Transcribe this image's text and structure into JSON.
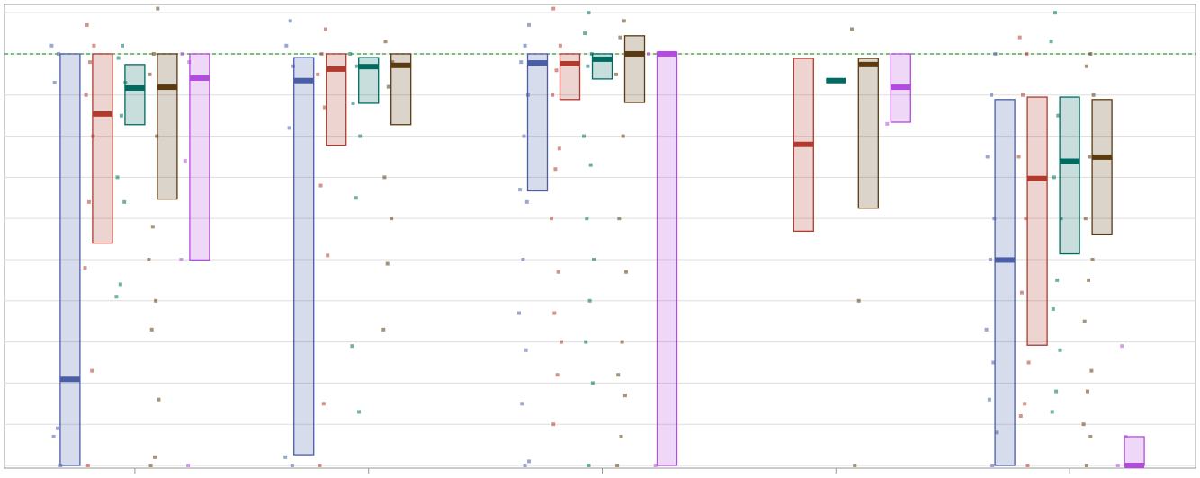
{
  "chart_data": {
    "type": "floating_box",
    "categories": [
      null,
      null,
      null,
      null,
      null
    ],
    "ylim": [
      0,
      1.12
    ],
    "yticks": [
      0,
      0.1,
      0.2,
      0.3,
      0.4,
      0.5,
      0.6,
      0.7,
      0.8,
      0.9,
      1.0,
      1.1
    ],
    "grid": true,
    "reference_line": 1.0,
    "reference_color": "#2a9a2a",
    "series": [
      {
        "color": "#4a5ea8",
        "low": [
          0,
          0.026,
          0.667,
          null,
          0
        ],
        "high": [
          1.0,
          0.991,
          1.0,
          null,
          0.889
        ],
        "median": [
          0.209,
          0.935,
          0.978,
          null,
          0.499
        ],
        "points": [
          [
            1.02,
            1.0,
            0.93,
            0.21,
            0.09,
            0.07,
            0
          ],
          [
            1.08,
            1.02,
            0.97,
            0.82,
            0.02,
            0
          ],
          [
            1.07,
            1.02,
            0.98,
            0.9,
            0.8,
            0.67,
            0.64,
            0.5,
            0.37,
            0.28,
            0.15,
            0.01,
            0
          ],
          [],
          [
            1.0,
            0.9,
            0.75,
            0.6,
            0.5,
            0.33,
            0.25,
            0.16,
            0.08,
            0
          ]
        ]
      },
      {
        "color": "#b03a2e",
        "low": [
          0.54,
          0.778,
          0.889,
          0.569,
          0.292
        ],
        "high": [
          1.0,
          1.0,
          1.0,
          0.989,
          0.895
        ],
        "median": [
          0.854,
          0.963,
          0.976,
          0.78,
          0.697
        ],
        "points": [
          [
            1.07,
            1.02,
            0.98,
            0.9,
            0.8,
            0.64,
            0.48,
            0.23,
            0
          ],
          [
            1.06,
            1.0,
            0.95,
            0.87,
            0.68,
            0.51,
            0.15,
            0
          ],
          [
            1.11,
            1.02,
            0.96,
            0.9,
            0.77,
            0.72,
            0.6,
            0.47,
            0.37,
            0.3,
            0.22,
            0.1
          ],
          [],
          [
            1.04,
            1.0,
            0.9,
            0.75,
            0.6,
            0.42,
            0.25,
            0.15,
            0.12,
            0
          ]
        ]
      },
      {
        "color": "#006b60",
        "low": [
          0.828,
          0.88,
          0.939,
          0.935,
          0.514
        ],
        "high": [
          0.974,
          0.991,
          1.0,
          0.935,
          0.895
        ],
        "median": [
          0.917,
          0.969,
          0.987,
          0.935,
          0.739
        ],
        "points": [
          [
            1.02,
            0.99,
            0.93,
            0.85,
            0.7,
            0.64,
            0.44,
            0.41
          ],
          [
            1.0,
            0.97,
            0.88,
            0.8,
            0.65,
            0.29,
            0.13
          ],
          [
            1.1,
            1.05,
            1.0,
            0.97,
            0.8,
            0.73,
            0.6,
            0.5,
            0.4,
            0.3,
            0.2,
            0
          ],
          [],
          [
            1.1,
            1.03,
            0.85,
            0.7,
            0.6,
            0.45,
            0.38,
            0.28,
            0.18,
            0.13
          ]
        ]
      },
      {
        "color": "#5c3a10",
        "low": [
          0.647,
          0.828,
          0.882,
          0.625,
          0.562
        ],
        "high": [
          1.0,
          1.0,
          1.044,
          0.989,
          0.889
        ],
        "median": [
          0.919,
          0.972,
          1.0,
          0.974,
          0.749
        ],
        "points": [
          [
            1.11,
            1.0,
            0.95,
            0.8,
            0.58,
            0.5,
            0.4,
            0.33,
            0.16,
            0.02,
            0
          ],
          [
            1.03,
            0.98,
            0.92,
            0.7,
            0.6,
            0.49,
            0.33
          ],
          [
            1.08,
            1.04,
            0.95,
            0.8,
            0.6,
            0.47,
            0.3,
            0.22,
            0.17,
            0.07,
            0
          ],
          [
            1.06,
            0.4,
            0
          ],
          [
            1.0,
            0.97,
            0.9,
            0.75,
            0.6,
            0.5,
            0.45,
            0.35,
            0.23,
            0.18,
            0.1,
            0.07,
            0
          ]
        ]
      },
      {
        "color": "#b44be0",
        "low": [
          0.499,
          null,
          0,
          0.834,
          0
        ],
        "high": [
          1.0,
          null,
          1.004,
          1.0,
          0.07
        ],
        "median": [
          0.941,
          null,
          1.0,
          0.919,
          0
        ],
        "points": [
          [
            1.0,
            0.98,
            0.74,
            0.5,
            0
          ],
          [],
          [
            1.0,
            0
          ],
          [
            0.83
          ],
          [
            0.07,
            0.29,
            0
          ]
        ]
      }
    ]
  }
}
